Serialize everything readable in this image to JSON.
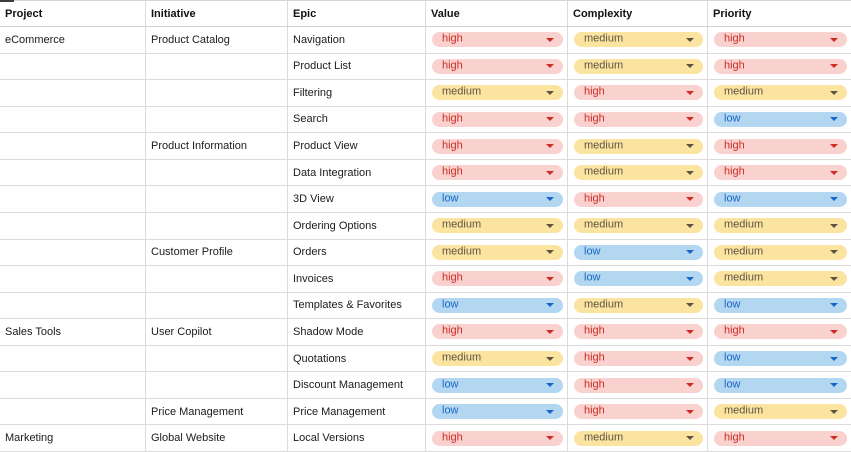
{
  "table": {
    "columns": [
      {
        "label": "Project"
      },
      {
        "label": "Initiative"
      },
      {
        "label": "Epic"
      },
      {
        "label": "Value"
      },
      {
        "label": "Complexity"
      },
      {
        "label": "Priority"
      }
    ],
    "rows": [
      {
        "project": "eCommerce",
        "initiative": "Product Catalog",
        "epic": "Navigation",
        "value": "high",
        "complexity": "medium",
        "priority": "high"
      },
      {
        "project": "",
        "initiative": "",
        "epic": "Product List",
        "value": "high",
        "complexity": "medium",
        "priority": "high"
      },
      {
        "project": "",
        "initiative": "",
        "epic": "Filtering",
        "value": "medium",
        "complexity": "high",
        "priority": "medium"
      },
      {
        "project": "",
        "initiative": "",
        "epic": "Search",
        "value": "high",
        "complexity": "high",
        "priority": "low"
      },
      {
        "project": "",
        "initiative": "Product Information",
        "epic": "Product View",
        "value": "high",
        "complexity": "medium",
        "priority": "high"
      },
      {
        "project": "",
        "initiative": "",
        "epic": "Data Integration",
        "value": "high",
        "complexity": "medium",
        "priority": "high"
      },
      {
        "project": "",
        "initiative": "",
        "epic": "3D View",
        "value": "low",
        "complexity": "high",
        "priority": "low"
      },
      {
        "project": "",
        "initiative": "",
        "epic": "Ordering Options",
        "value": "medium",
        "complexity": "medium",
        "priority": "medium"
      },
      {
        "project": "",
        "initiative": "Customer Profile",
        "epic": "Orders",
        "value": "medium",
        "complexity": "low",
        "priority": "medium"
      },
      {
        "project": "",
        "initiative": "",
        "epic": "Invoices",
        "value": "high",
        "complexity": "low",
        "priority": "medium"
      },
      {
        "project": "",
        "initiative": "",
        "epic": "Templates & Favorites",
        "value": "low",
        "complexity": "medium",
        "priority": "low"
      },
      {
        "project": "Sales Tools",
        "initiative": "User Copilot",
        "epic": "Shadow Mode",
        "value": "high",
        "complexity": "high",
        "priority": "high"
      },
      {
        "project": "",
        "initiative": "",
        "epic": "Quotations",
        "value": "medium",
        "complexity": "high",
        "priority": "low"
      },
      {
        "project": "",
        "initiative": "",
        "epic": "Discount Management",
        "value": "low",
        "complexity": "high",
        "priority": "low"
      },
      {
        "project": "",
        "initiative": "Price Management",
        "epic": "Price Management",
        "value": "low",
        "complexity": "high",
        "priority": "medium"
      },
      {
        "project": "Marketing",
        "initiative": "Global Website",
        "epic": "Local Versions",
        "value": "high",
        "complexity": "medium",
        "priority": "high"
      }
    ]
  },
  "dropdown": {
    "arrow_icon": "chevron-down",
    "levels": {
      "high": {
        "bg": "#f9d1cf",
        "fg": "#cc2d23"
      },
      "medium": {
        "bg": "#fbe3a0",
        "fg": "#5d5343"
      },
      "low": {
        "bg": "#b4d7f1",
        "fg": "#1866c5"
      }
    }
  },
  "grid": {
    "border_color": "#dcdcdc"
  }
}
